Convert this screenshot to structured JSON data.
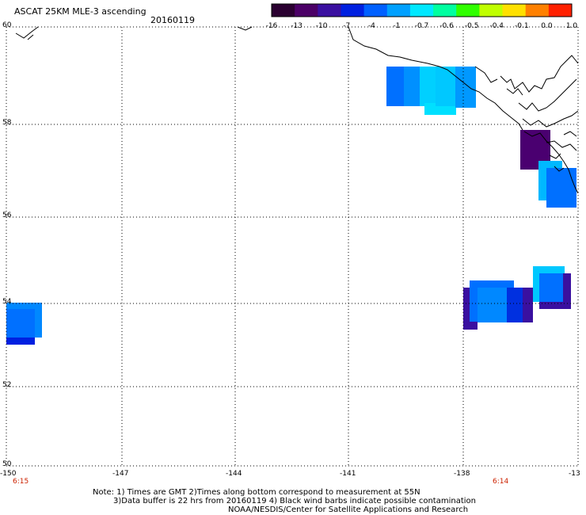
{
  "title": "ASCAT 25KM MLE-3 ascending",
  "date": "20160119",
  "colorbar": {
    "labels": [
      "-16",
      "-13",
      "-10",
      "-7",
      "-4",
      "-1",
      "-0.7",
      "-0.6",
      "-0.5",
      "-0.4",
      "-0.1",
      "0.0",
      "1.0"
    ],
    "colors": [
      "#2a0030",
      "#4b0066",
      "#3a10a0",
      "#0020e0",
      "#0060ff",
      "#00a0ff",
      "#00e8ff",
      "#00ffa0",
      "#30ff00",
      "#c0ff00",
      "#ffe000",
      "#ff8000",
      "#ff2000"
    ]
  },
  "y_axis": {
    "labels": [
      "60",
      "58",
      "56",
      "54",
      "52",
      "50"
    ]
  },
  "x_axis": {
    "labels": [
      "-150",
      "-147",
      "-144",
      "-141",
      "-138",
      "-13"
    ]
  },
  "times": {
    "left": "6:15",
    "right": "6:14"
  },
  "notes": {
    "line1": "Note: 1) Times are GMT 2)Times along bottom correspond to measurement at 55N",
    "line2": "3)Data buffer is 22 hrs from 20160119 4) Black wind barbs indicate possible contamination",
    "line3": "NOAA/NESDIS/Center for Satellite Applications and Research"
  },
  "colors": {
    "grid": "#000000",
    "coast": "#000000"
  }
}
